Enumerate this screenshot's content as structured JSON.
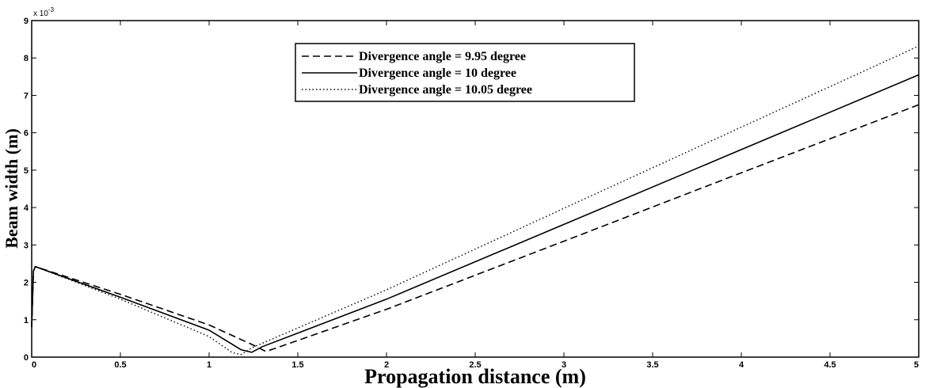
{
  "chart_data": {
    "type": "line",
    "title": "",
    "xlabel": "Propagation distance (m)",
    "ylabel": "Beam width (m)",
    "y_multiplier_label": "x 10",
    "y_multiplier_exp": "-3",
    "xlim": [
      0,
      5
    ],
    "ylim": [
      0,
      9
    ],
    "xticks": [
      0,
      0.5,
      1,
      1.5,
      2,
      2.5,
      3,
      3.5,
      4,
      4.5,
      5
    ],
    "xtick_labels": [
      "0",
      "0.5",
      "1",
      "1.5",
      "2",
      "2.5",
      "3",
      "3.5",
      "4",
      "4.5",
      "5"
    ],
    "yticks": [
      0,
      1,
      2,
      3,
      4,
      5,
      6,
      7,
      8,
      9
    ],
    "ytick_labels": [
      "0",
      "1",
      "2",
      "3",
      "4",
      "5",
      "6",
      "7",
      "8",
      "9"
    ],
    "grid": false,
    "legend_position": "top-center",
    "series": [
      {
        "name": "Divergence angle = 9.95 degree",
        "style": "dashed",
        "color": "#000000",
        "x": [
          0,
          0.01,
          0.02,
          0.5,
          1.0,
          1.25,
          1.32,
          1.4,
          2.0,
          3.0,
          4.0,
          5.0
        ],
        "y": [
          0.8,
          2.3,
          2.42,
          1.68,
          0.86,
          0.32,
          0.15,
          0.28,
          1.28,
          3.1,
          4.93,
          6.75
        ]
      },
      {
        "name": "Divergence angle = 10 degree",
        "style": "solid",
        "color": "#000000",
        "x": [
          0,
          0.01,
          0.02,
          0.5,
          1.0,
          1.18,
          1.24,
          1.3,
          2.0,
          3.0,
          4.0,
          5.0
        ],
        "y": [
          0.8,
          2.3,
          2.42,
          1.6,
          0.72,
          0.2,
          0.13,
          0.28,
          1.55,
          3.55,
          5.55,
          7.55
        ]
      },
      {
        "name": "Divergence angle = 10.05 degree",
        "style": "dotted",
        "color": "#000000",
        "x": [
          0,
          0.01,
          0.02,
          0.5,
          1.0,
          1.13,
          1.18,
          1.25,
          2.0,
          3.0,
          4.0,
          5.0
        ],
        "y": [
          0.8,
          2.3,
          2.42,
          1.55,
          0.55,
          0.12,
          0.07,
          0.27,
          1.8,
          3.98,
          6.15,
          8.32
        ]
      }
    ]
  }
}
